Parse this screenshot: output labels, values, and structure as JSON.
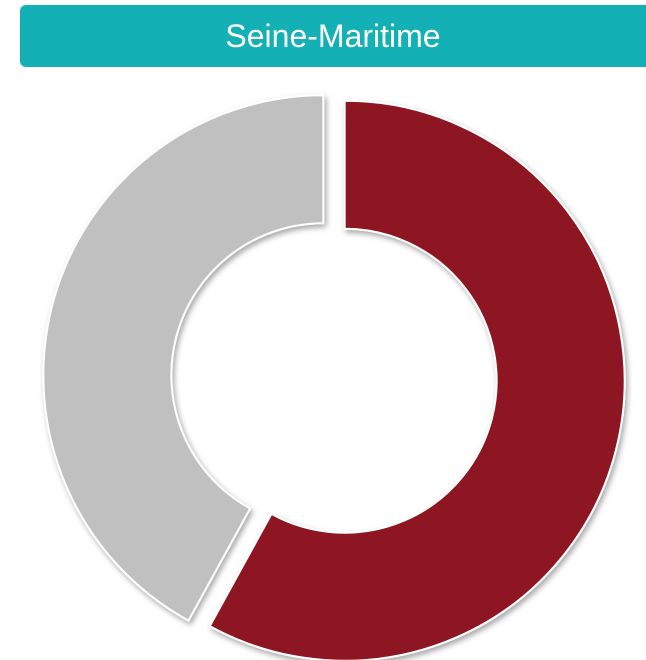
{
  "chart_data": {
    "type": "pie",
    "title": "Seine-Maritime",
    "values": [
      58,
      42
    ],
    "colors": [
      "#8e1720",
      "#c0c0c0"
    ],
    "donut": true
  }
}
